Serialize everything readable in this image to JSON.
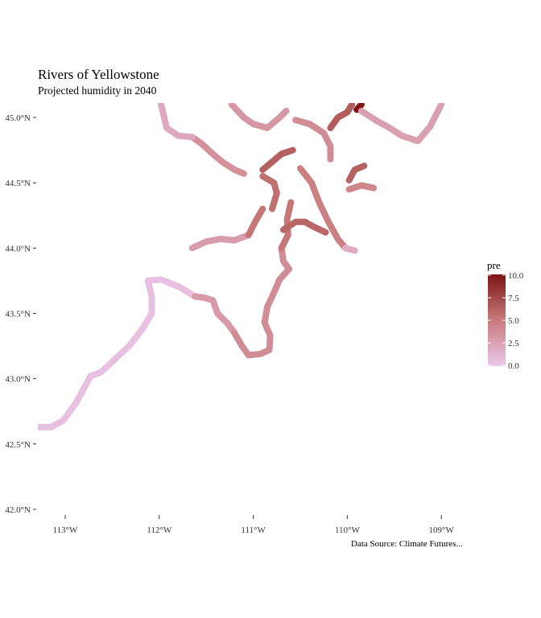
{
  "title": "Rivers of Yellowstone",
  "subtitle": "Projected humidity in 2040",
  "caption": "Data Source: Climate Futures...",
  "legend": {
    "title": "pre",
    "ticks": [
      "10.0",
      "7.5",
      "5.0",
      "2.5",
      "0.0"
    ],
    "values": [
      10,
      7.5,
      5,
      2.5,
      0
    ],
    "low_color": "#ecc8ec",
    "mid_color": "#c87b7b",
    "high_color": "#7d1212"
  },
  "axes": {
    "lat_labels": [
      "45.0°N",
      "44.5°N",
      "44.0°N",
      "43.5°N",
      "43.0°N",
      "42.5°N",
      "42.0°N"
    ],
    "lat_values": [
      45.0,
      44.5,
      44.0,
      43.5,
      43.0,
      42.5,
      42.0
    ],
    "lon_labels": [
      "113°W",
      "112°W",
      "111°W",
      "110°W",
      "109°W"
    ],
    "lon_values": [
      -113,
      -112,
      -111,
      -110,
      -109
    ]
  },
  "chart_data": {
    "type": "scatter",
    "x_range": [
      -113.3,
      -108.95
    ],
    "y_range": [
      41.95,
      45.1
    ],
    "color_scale": {
      "name": "pre",
      "min": 0,
      "max": 10
    },
    "rivers": [
      {
        "v": 0.5,
        "pts": [
          [
            -113.3,
            42.63
          ],
          [
            -113.15,
            42.63
          ],
          [
            -113.02,
            42.68
          ],
          [
            -112.88,
            42.82
          ],
          [
            -112.73,
            43.02
          ],
          [
            -112.62,
            43.05
          ],
          [
            -112.47,
            43.15
          ],
          [
            -112.32,
            43.25
          ],
          [
            -112.18,
            43.38
          ],
          [
            -112.08,
            43.5
          ],
          [
            -112.08,
            43.63
          ],
          [
            -112.12,
            43.75
          ],
          [
            -111.98,
            43.76
          ],
          [
            -111.78,
            43.7
          ],
          [
            -111.62,
            43.63
          ]
        ]
      },
      {
        "v": 3.0,
        "pts": [
          [
            -111.62,
            43.63
          ],
          [
            -111.52,
            43.62
          ],
          [
            -111.43,
            43.6
          ],
          [
            -111.38,
            43.5
          ],
          [
            -111.27,
            43.42
          ],
          [
            -111.2,
            43.35
          ]
        ]
      },
      {
        "v": 3.8,
        "pts": [
          [
            -111.2,
            43.35
          ],
          [
            -111.12,
            43.25
          ],
          [
            -111.05,
            43.18
          ],
          [
            -110.92,
            43.19
          ],
          [
            -110.83,
            43.22
          ],
          [
            -110.82,
            43.33
          ],
          [
            -110.88,
            43.43
          ],
          [
            -110.85,
            43.55
          ],
          [
            -110.78,
            43.66
          ],
          [
            -110.72,
            43.76
          ],
          [
            -110.62,
            43.84
          ],
          [
            -110.68,
            43.9
          ],
          [
            -110.7,
            44.0
          ]
        ]
      },
      {
        "v": 5.2,
        "pts": [
          [
            -110.7,
            44.0
          ],
          [
            -110.63,
            44.1
          ],
          [
            -110.64,
            44.22
          ],
          [
            -110.6,
            44.35
          ]
        ]
      },
      {
        "v": 2.8,
        "pts": [
          [
            -111.65,
            44.0
          ],
          [
            -111.5,
            44.05
          ],
          [
            -111.35,
            44.07
          ],
          [
            -111.2,
            44.06
          ],
          [
            -111.05,
            44.1
          ]
        ]
      },
      {
        "v": 5.5,
        "pts": [
          [
            -110.8,
            44.3
          ],
          [
            -110.75,
            44.42
          ],
          [
            -110.78,
            44.5
          ],
          [
            -110.9,
            44.55
          ]
        ]
      },
      {
        "v": 5.2,
        "pts": [
          [
            -111.05,
            44.1
          ],
          [
            -110.98,
            44.2
          ],
          [
            -110.9,
            44.3
          ]
        ]
      },
      {
        "v": 6.0,
        "pts": [
          [
            -110.68,
            44.14
          ],
          [
            -110.55,
            44.2
          ],
          [
            -110.45,
            44.2
          ],
          [
            -110.35,
            44.16
          ],
          [
            -110.23,
            44.12
          ]
        ]
      },
      {
        "v": 3.6,
        "pts": [
          [
            -111.1,
            44.57
          ],
          [
            -111.2,
            44.6
          ],
          [
            -111.33,
            44.66
          ],
          [
            -111.43,
            44.72
          ],
          [
            -111.55,
            44.8
          ],
          [
            -111.65,
            44.85
          ]
        ]
      },
      {
        "v": 6.3,
        "pts": [
          [
            -110.9,
            44.6
          ],
          [
            -110.8,
            44.66
          ],
          [
            -110.7,
            44.72
          ],
          [
            -110.58,
            44.75
          ]
        ]
      },
      {
        "v": 4.6,
        "pts": [
          [
            -110.5,
            44.61
          ],
          [
            -110.38,
            44.5
          ],
          [
            -110.3,
            44.35
          ],
          [
            -110.2,
            44.2
          ],
          [
            -110.1,
            44.07
          ],
          [
            -110.02,
            44.0
          ]
        ]
      },
      {
        "v": 1.8,
        "pts": [
          [
            -110.02,
            44.0
          ],
          [
            -109.92,
            43.98
          ]
        ]
      },
      {
        "v": 6.2,
        "pts": [
          [
            -109.98,
            44.52
          ],
          [
            -109.92,
            44.6
          ],
          [
            -109.82,
            44.63
          ]
        ]
      },
      {
        "v": 4.2,
        "pts": [
          [
            -109.98,
            44.45
          ],
          [
            -109.85,
            44.48
          ],
          [
            -109.72,
            44.46
          ]
        ]
      },
      {
        "v": 2.0,
        "pts": [
          [
            -111.65,
            44.85
          ],
          [
            -111.8,
            44.86
          ],
          [
            -111.92,
            44.92
          ],
          [
            -111.98,
            45.1
          ]
        ]
      },
      {
        "v": 3.2,
        "pts": [
          [
            -111.23,
            45.1
          ],
          [
            -111.1,
            45.0
          ],
          [
            -111.0,
            44.95
          ],
          [
            -110.85,
            44.92
          ],
          [
            -110.72,
            45.0
          ],
          [
            -110.65,
            45.05
          ]
        ]
      },
      {
        "v": 3.8,
        "pts": [
          [
            -110.55,
            44.98
          ],
          [
            -110.4,
            44.95
          ],
          [
            -110.25,
            44.88
          ],
          [
            -110.18,
            44.78
          ],
          [
            -110.18,
            44.68
          ]
        ]
      },
      {
        "v": 6.5,
        "pts": [
          [
            -110.18,
            44.92
          ],
          [
            -110.1,
            45.0
          ],
          [
            -110.0,
            45.04
          ],
          [
            -109.95,
            45.1
          ]
        ]
      },
      {
        "v": 9.8,
        "pts": [
          [
            -109.9,
            45.06
          ],
          [
            -109.85,
            45.1
          ]
        ]
      },
      {
        "v": 2.6,
        "pts": [
          [
            -109.85,
            45.05
          ],
          [
            -109.7,
            44.98
          ],
          [
            -109.55,
            44.92
          ],
          [
            -109.42,
            44.86
          ],
          [
            -109.25,
            44.82
          ],
          [
            -109.12,
            44.93
          ],
          [
            -109.0,
            45.1
          ]
        ]
      }
    ]
  }
}
